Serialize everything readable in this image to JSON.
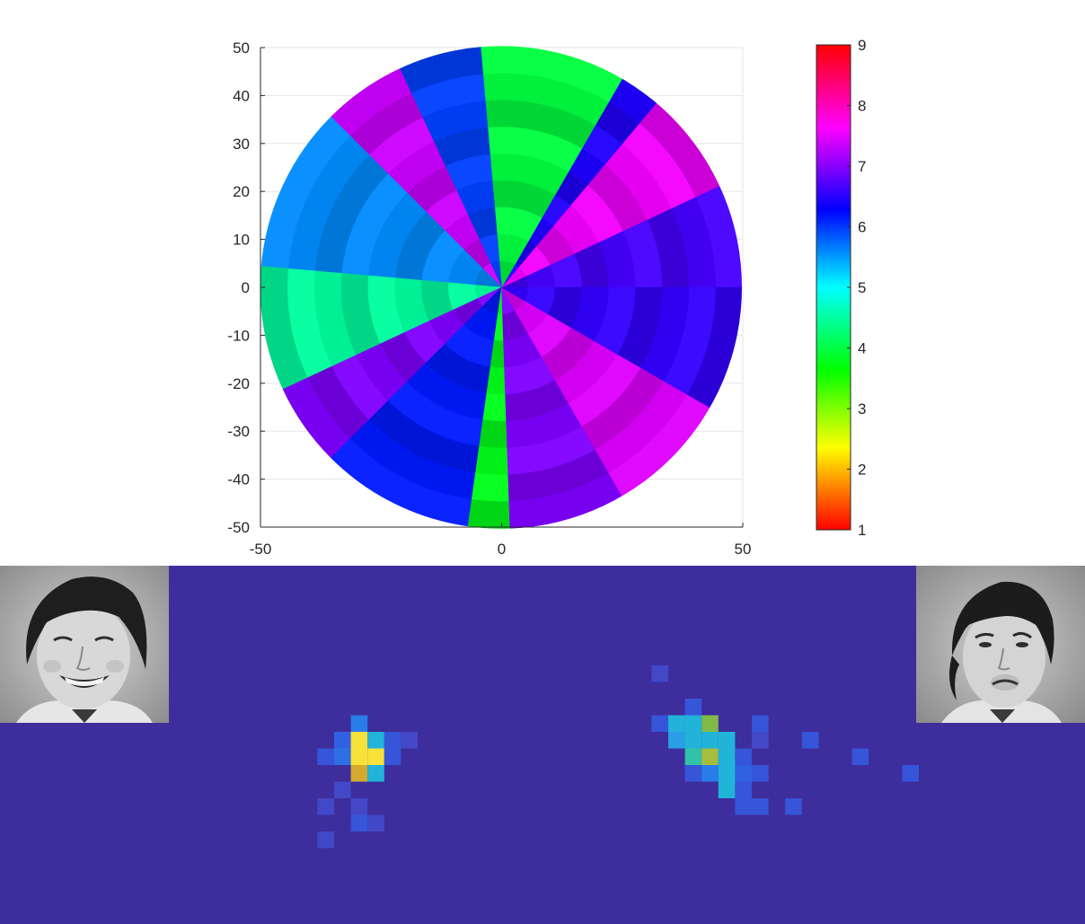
{
  "chart_data": [
    {
      "type": "heatmap",
      "subtype": "polar-surface",
      "xlim": [
        -50,
        50
      ],
      "ylim": [
        -50,
        50
      ],
      "x_ticks": [
        "-50",
        "0",
        "50"
      ],
      "y_ticks": [
        "50",
        "40",
        "30",
        "20",
        "10",
        "0",
        "-10",
        "-20",
        "-30",
        "-40",
        "-50"
      ],
      "grid": true,
      "colorbar": {
        "range": [
          1,
          9
        ],
        "ticks": [
          "9",
          "8",
          "7",
          "6",
          "5",
          "4",
          "3",
          "2",
          "1"
        ],
        "colormap": "hsv (red → yellow → green → cyan → blue → magenta)"
      },
      "sectors": [
        {
          "theta_start": 0,
          "theta_end": 25,
          "value": 6.7
        },
        {
          "theta_start": 25,
          "theta_end": 50,
          "value": 7.6
        },
        {
          "theta_start": 50,
          "theta_end": 60,
          "value": 6.5
        },
        {
          "theta_start": 60,
          "theta_end": 95,
          "value": 4.0
        },
        {
          "theta_start": 95,
          "theta_end": 115,
          "value": 6.0
        },
        {
          "theta_start": 115,
          "theta_end": 135,
          "value": 7.4
        },
        {
          "theta_start": 135,
          "theta_end": 175,
          "value": 5.6
        },
        {
          "theta_start": 175,
          "theta_end": 205,
          "value": 4.5
        },
        {
          "theta_start": 205,
          "theta_end": 225,
          "value": 7.0
        },
        {
          "theta_start": 225,
          "theta_end": 262,
          "value": 6.2
        },
        {
          "theta_start": 262,
          "theta_end": 272,
          "value": 3.8
        },
        {
          "theta_start": 272,
          "theta_end": 300,
          "value": 7.0
        },
        {
          "theta_start": 300,
          "theta_end": 330,
          "value": 7.5
        },
        {
          "theta_start": 330,
          "theta_end": 360,
          "value": 6.6
        }
      ]
    },
    {
      "type": "heatmap",
      "background_color": "#3e2d9c",
      "cells": [
        {
          "col": 21,
          "row": 9,
          "color": "#2a7de8"
        },
        {
          "col": 20,
          "row": 10,
          "color": "#2f61e0"
        },
        {
          "col": 21,
          "row": 10,
          "color": "#f7e23a"
        },
        {
          "col": 22,
          "row": 10,
          "color": "#22b3d8"
        },
        {
          "col": 23,
          "row": 10,
          "color": "#3755d8"
        },
        {
          "col": 24,
          "row": 10,
          "color": "#4248c8"
        },
        {
          "col": 19,
          "row": 11,
          "color": "#3755d8"
        },
        {
          "col": 20,
          "row": 11,
          "color": "#2f6fe5"
        },
        {
          "col": 21,
          "row": 11,
          "color": "#f7e23a"
        },
        {
          "col": 22,
          "row": 11,
          "color": "#f7e23a"
        },
        {
          "col": 23,
          "row": 11,
          "color": "#3755d8"
        },
        {
          "col": 21,
          "row": 12,
          "color": "#d3a92f"
        },
        {
          "col": 22,
          "row": 12,
          "color": "#22b3d8"
        },
        {
          "col": 20,
          "row": 13,
          "color": "#4248c8"
        },
        {
          "col": 19,
          "row": 14,
          "color": "#4248c8"
        },
        {
          "col": 21,
          "row": 14,
          "color": "#4248c8"
        },
        {
          "col": 21,
          "row": 15,
          "color": "#3755d8"
        },
        {
          "col": 22,
          "row": 15,
          "color": "#4248c8"
        },
        {
          "col": 19,
          "row": 16,
          "color": "#4248c8"
        },
        {
          "col": 39,
          "row": 6,
          "color": "#4248c8"
        },
        {
          "col": 41,
          "row": 8,
          "color": "#3755d8"
        },
        {
          "col": 39,
          "row": 9,
          "color": "#3755d8"
        },
        {
          "col": 40,
          "row": 9,
          "color": "#22b3d8"
        },
        {
          "col": 41,
          "row": 9,
          "color": "#22b3d8"
        },
        {
          "col": 42,
          "row": 9,
          "color": "#7fba4a"
        },
        {
          "col": 45,
          "row": 9,
          "color": "#3755d8"
        },
        {
          "col": 40,
          "row": 10,
          "color": "#2a9fe6"
        },
        {
          "col": 41,
          "row": 10,
          "color": "#22b3d8"
        },
        {
          "col": 42,
          "row": 10,
          "color": "#22b3d8"
        },
        {
          "col": 43,
          "row": 10,
          "color": "#22b3d8"
        },
        {
          "col": 45,
          "row": 10,
          "color": "#4248c8"
        },
        {
          "col": 48,
          "row": 10,
          "color": "#3755d8"
        },
        {
          "col": 41,
          "row": 11,
          "color": "#31c2a8"
        },
        {
          "col": 42,
          "row": 11,
          "color": "#a6be3c"
        },
        {
          "col": 43,
          "row": 11,
          "color": "#22b3d8"
        },
        {
          "col": 44,
          "row": 11,
          "color": "#3755d8"
        },
        {
          "col": 41,
          "row": 12,
          "color": "#3755d8"
        },
        {
          "col": 42,
          "row": 12,
          "color": "#2a7de8"
        },
        {
          "col": 43,
          "row": 12,
          "color": "#22b3d8"
        },
        {
          "col": 44,
          "row": 12,
          "color": "#2f61e0"
        },
        {
          "col": 45,
          "row": 12,
          "color": "#3755d8"
        },
        {
          "col": 51,
          "row": 11,
          "color": "#3755d8"
        },
        {
          "col": 43,
          "row": 13,
          "color": "#22b3d8"
        },
        {
          "col": 44,
          "row": 13,
          "color": "#3755d8"
        },
        {
          "col": 54,
          "row": 12,
          "color": "#3755d8"
        },
        {
          "col": 44,
          "row": 14,
          "color": "#3755d8"
        },
        {
          "col": 45,
          "row": 14,
          "color": "#3755d8"
        },
        {
          "col": 47,
          "row": 14,
          "color": "#3755d8"
        }
      ]
    }
  ],
  "photos": [
    {
      "name": "smiling-face-photo",
      "expression": "smiling"
    },
    {
      "name": "frowning-face-photo",
      "expression": "frowning"
    }
  ]
}
